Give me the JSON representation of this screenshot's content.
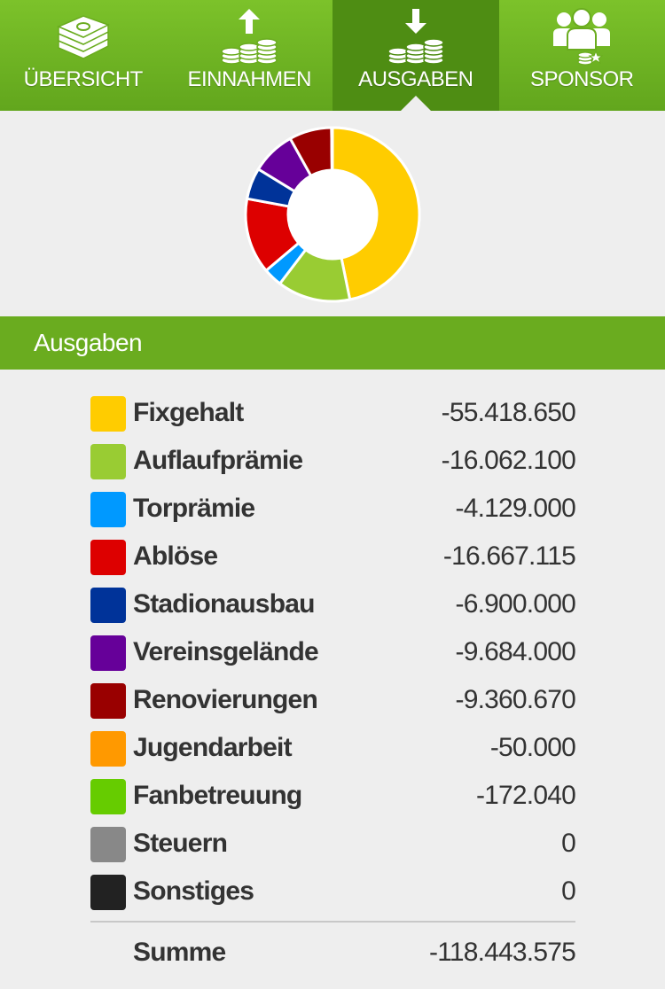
{
  "tabs": [
    {
      "label": "ÜBERSICHT",
      "icon": "money-stack-icon",
      "active": false
    },
    {
      "label": "EINNAHMEN",
      "icon": "coins-arrow-up-icon",
      "active": false
    },
    {
      "label": "AUSGABEN",
      "icon": "coins-arrow-down-icon",
      "active": true
    },
    {
      "label": "SPONSOR",
      "icon": "sponsor-people-icon",
      "active": false
    }
  ],
  "section": {
    "title": "Ausgaben"
  },
  "items": [
    {
      "label": "Fixgehalt",
      "value": "-55.418.650",
      "color": "#ffcc00"
    },
    {
      "label": "Auflaufprämie",
      "value": "-16.062.100",
      "color": "#99cc33"
    },
    {
      "label": "Torprämie",
      "value": "-4.129.000",
      "color": "#0099ff"
    },
    {
      "label": "Ablöse",
      "value": "-16.667.115",
      "color": "#dd0000"
    },
    {
      "label": "Stadionausbau",
      "value": "-6.900.000",
      "color": "#003399"
    },
    {
      "label": "Vereinsgelände",
      "value": "-9.684.000",
      "color": "#660099"
    },
    {
      "label": "Renovierungen",
      "value": "-9.360.670",
      "color": "#990000"
    },
    {
      "label": "Jugendarbeit",
      "value": "-50.000",
      "color": "#ff9900"
    },
    {
      "label": "Fanbetreuung",
      "value": "-172.040",
      "color": "#66cc00"
    },
    {
      "label": "Steuern",
      "value": "0",
      "color": "#888888"
    },
    {
      "label": "Sonstiges",
      "value": "0",
      "color": "#222222"
    }
  ],
  "total": {
    "label": "Summe",
    "value": "-118.443.575"
  },
  "chart_data": {
    "type": "pie",
    "categories": [
      "Fixgehalt",
      "Auflaufprämie",
      "Torprämie",
      "Ablöse",
      "Stadionausbau",
      "Vereinsgelände",
      "Renovierungen",
      "Jugendarbeit",
      "Fanbetreuung",
      "Steuern",
      "Sonstiges"
    ],
    "values": [
      55418650,
      16062100,
      4129000,
      16667115,
      6900000,
      9684000,
      9360670,
      50000,
      172040,
      0,
      0
    ],
    "colors": [
      "#ffcc00",
      "#99cc33",
      "#0099ff",
      "#dd0000",
      "#003399",
      "#660099",
      "#990000",
      "#ff9900",
      "#66cc00",
      "#888888",
      "#222222"
    ],
    "style": "donut"
  }
}
